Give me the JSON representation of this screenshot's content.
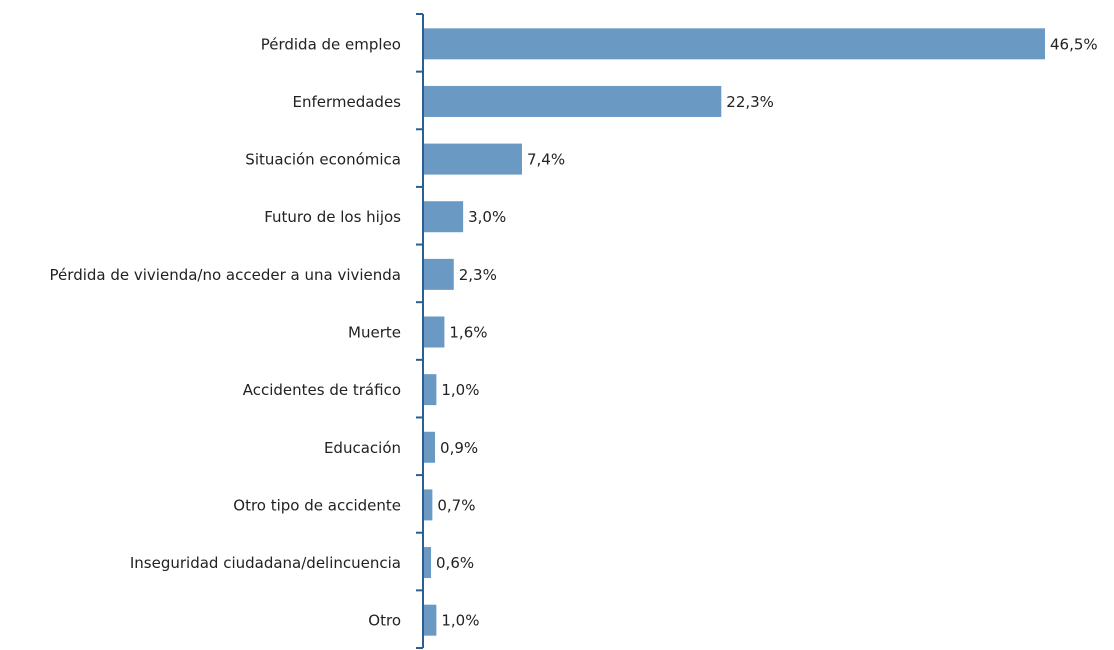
{
  "chart_data": {
    "type": "barh",
    "categories": [
      "Pérdida de empleo",
      "Enfermedades",
      "Situación económica",
      "Futuro de los hijos",
      "Pérdida de vivienda/no acceder a una vivienda",
      "Muerte",
      "Accidentes de tráfico",
      "Educación",
      "Otro tipo de accidente",
      "Inseguridad ciudadana/delincuencia",
      "Otro"
    ],
    "values": [
      46.5,
      22.3,
      7.4,
      3.0,
      2.3,
      1.6,
      1.0,
      0.9,
      0.7,
      0.6,
      1.0
    ],
    "value_labels": [
      "46,5%",
      "22,3%",
      "7,4%",
      "3,0%",
      "2,3%",
      "1,6%",
      "1,0%",
      "0,9%",
      "0,7%",
      "0,6%",
      "1,0%"
    ],
    "color": "#6a9ac4"
  }
}
